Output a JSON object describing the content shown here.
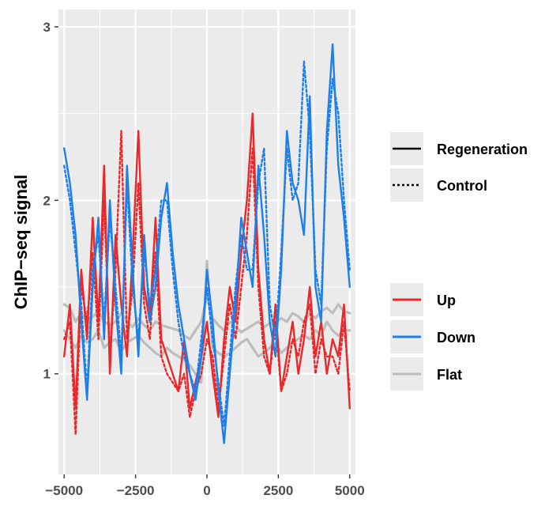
{
  "chart_data": {
    "type": "line",
    "title": "",
    "xlabel": "",
    "ylabel": "ChIP−seq signal",
    "xlim": [
      -5200,
      5200
    ],
    "ylim": [
      0.42,
      3.1
    ],
    "x_ticks": [
      -5000,
      -2500,
      0,
      2500,
      5000
    ],
    "x_tick_labels": [
      "−5000",
      "−2500",
      "0",
      "2500",
      "5000"
    ],
    "y_ticks": [
      1,
      2,
      3
    ],
    "y_tick_labels": [
      "1",
      "2",
      "3"
    ],
    "grid": true,
    "legend_position": "right",
    "linetype_legend": [
      {
        "label": "Regeneration",
        "dash": "solid"
      },
      {
        "label": "Control",
        "dash": "dotted"
      }
    ],
    "color_legend": [
      {
        "label": "Up",
        "color": "#e8282b"
      },
      {
        "label": "Down",
        "color": "#1e7fe8"
      },
      {
        "label": "Flat",
        "color": "#bdbdbd"
      }
    ],
    "series": [
      {
        "group": "Up",
        "condition": "Regeneration",
        "color": "#e8282b",
        "dash": "solid",
        "x": [
          -5000,
          -4800,
          -4600,
          -4400,
          -4200,
          -4000,
          -3800,
          -3600,
          -3400,
          -3200,
          -3000,
          -2800,
          -2600,
          -2400,
          -2200,
          -2000,
          -1800,
          -1600,
          -1400,
          -1200,
          -1000,
          -800,
          -600,
          -400,
          -200,
          0,
          200,
          400,
          600,
          800,
          1000,
          1200,
          1400,
          1600,
          1800,
          2000,
          2200,
          2400,
          2600,
          2800,
          3000,
          3200,
          3400,
          3600,
          3800,
          4000,
          4200,
          4400,
          4600,
          4800,
          5000
        ],
        "y": [
          1.1,
          1.4,
          0.8,
          1.6,
          1.2,
          1.9,
          1.3,
          2.2,
          1.0,
          1.8,
          1.4,
          1.1,
          1.7,
          2.4,
          1.5,
          1.3,
          1.9,
          1.2,
          1.1,
          1.0,
          0.9,
          1.2,
          0.8,
          0.95,
          1.1,
          1.3,
          1.0,
          0.75,
          1.2,
          1.5,
          1.3,
          1.7,
          2.0,
          2.5,
          1.6,
          1.2,
          1.0,
          1.4,
          0.9,
          1.1,
          1.3,
          1.0,
          1.2,
          1.5,
          1.1,
          1.3,
          1.0,
          1.2,
          1.1,
          1.4,
          0.8
        ]
      },
      {
        "group": "Up",
        "condition": "Control",
        "color": "#e8282b",
        "dash": "dotted",
        "x": [
          -5000,
          -4800,
          -4600,
          -4400,
          -4200,
          -4000,
          -3800,
          -3600,
          -3400,
          -3200,
          -3000,
          -2800,
          -2600,
          -2400,
          -2200,
          -2000,
          -1800,
          -1600,
          -1400,
          -1200,
          -1000,
          -800,
          -600,
          -400,
          -200,
          0,
          200,
          400,
          600,
          800,
          1000,
          1200,
          1400,
          1600,
          1800,
          2000,
          2200,
          2400,
          2600,
          2800,
          3000,
          3200,
          3400,
          3600,
          3800,
          4000,
          4200,
          4400,
          4600,
          4800,
          5000
        ],
        "y": [
          1.2,
          1.3,
          0.65,
          1.5,
          1.3,
          1.7,
          1.2,
          2.0,
          1.1,
          1.6,
          2.4,
          1.2,
          1.5,
          2.1,
          1.4,
          1.2,
          1.7,
          1.1,
          1.0,
          0.95,
          0.9,
          1.0,
          0.75,
          0.9,
          1.0,
          1.2,
          1.1,
          0.8,
          1.1,
          1.4,
          1.2,
          1.5,
          1.8,
          2.3,
          1.5,
          1.1,
          1.0,
          1.3,
          0.9,
          1.0,
          1.2,
          1.1,
          1.3,
          1.4,
          1.0,
          1.2,
          1.1,
          1.1,
          1.0,
          1.3,
          0.9
        ]
      },
      {
        "group": "Down",
        "condition": "Regeneration",
        "color": "#1e7fe8",
        "dash": "solid",
        "x": [
          -5000,
          -4800,
          -4600,
          -4400,
          -4200,
          -4000,
          -3800,
          -3600,
          -3400,
          -3200,
          -3000,
          -2800,
          -2600,
          -2400,
          -2200,
          -2000,
          -1800,
          -1600,
          -1400,
          -1200,
          -1000,
          -800,
          -600,
          -400,
          -200,
          0,
          200,
          400,
          600,
          800,
          1000,
          1200,
          1400,
          1600,
          1800,
          2000,
          2200,
          2400,
          2600,
          2800,
          3000,
          3200,
          3400,
          3600,
          3800,
          4000,
          4200,
          4400,
          4600,
          4800,
          5000
        ],
        "y": [
          2.3,
          2.1,
          1.8,
          1.3,
          0.85,
          1.5,
          1.9,
          1.2,
          2.0,
          1.4,
          1.0,
          2.2,
          1.6,
          1.1,
          1.8,
          1.3,
          1.5,
          1.9,
          2.1,
          1.7,
          1.4,
          1.2,
          1.0,
          0.85,
          1.1,
          1.6,
          1.3,
          0.9,
          0.6,
          1.0,
          1.4,
          1.9,
          1.7,
          1.5,
          2.2,
          1.8,
          1.3,
          1.1,
          1.6,
          2.4,
          2.1,
          2.0,
          1.8,
          2.6,
          1.5,
          1.3,
          2.4,
          2.9,
          2.2,
          1.9,
          1.5
        ]
      },
      {
        "group": "Down",
        "condition": "Control",
        "color": "#1e7fe8",
        "dash": "dotted",
        "x": [
          -5000,
          -4800,
          -4600,
          -4400,
          -4200,
          -4000,
          -3800,
          -3600,
          -3400,
          -3200,
          -3000,
          -2800,
          -2600,
          -2400,
          -2200,
          -2000,
          -1800,
          -1600,
          -1400,
          -1200,
          -1000,
          -800,
          -600,
          -400,
          -200,
          0,
          200,
          400,
          600,
          800,
          1000,
          1200,
          1400,
          1600,
          1800,
          2000,
          2200,
          2400,
          2600,
          2800,
          3000,
          3200,
          3400,
          3600,
          3800,
          4000,
          4200,
          4400,
          4600,
          4800,
          5000
        ],
        "y": [
          2.2,
          2.0,
          1.7,
          1.4,
          0.9,
          1.6,
          1.8,
          1.3,
          1.9,
          1.5,
          1.1,
          2.1,
          1.5,
          1.2,
          1.7,
          1.4,
          1.6,
          2.0,
          2.0,
          1.6,
          1.3,
          1.1,
          1.0,
          0.9,
          1.2,
          1.5,
          1.2,
          0.95,
          0.7,
          1.1,
          1.5,
          1.8,
          1.6,
          1.6,
          2.1,
          2.3,
          1.4,
          1.2,
          1.7,
          2.3,
          2.0,
          2.1,
          2.8,
          2.4,
          1.6,
          1.4,
          2.3,
          2.7,
          2.5,
          2.0,
          1.6
        ]
      },
      {
        "group": "Flat",
        "condition": "Regeneration",
        "color": "#bdbdbd",
        "dash": "solid",
        "x": [
          -5000,
          -4800,
          -4600,
          -4400,
          -4200,
          -4000,
          -3800,
          -3600,
          -3400,
          -3200,
          -3000,
          -2800,
          -2600,
          -2400,
          -2200,
          -2000,
          -1800,
          -1600,
          -1400,
          -1200,
          -1000,
          -800,
          -600,
          -400,
          -200,
          0,
          200,
          400,
          600,
          800,
          1000,
          1200,
          1400,
          1600,
          1800,
          2000,
          2200,
          2400,
          2600,
          2800,
          3000,
          3200,
          3400,
          3600,
          3800,
          4000,
          4200,
          4400,
          4600,
          4800,
          5000
        ],
        "y": [
          1.4,
          1.38,
          1.3,
          1.35,
          1.3,
          1.33,
          1.36,
          1.3,
          1.28,
          1.3,
          1.35,
          1.3,
          1.27,
          1.32,
          1.28,
          1.25,
          1.3,
          1.28,
          1.27,
          1.26,
          1.25,
          1.22,
          1.2,
          1.25,
          1.3,
          1.45,
          1.32,
          1.28,
          1.25,
          1.3,
          1.27,
          1.24,
          1.26,
          1.28,
          1.3,
          1.27,
          1.29,
          1.3,
          1.32,
          1.3,
          1.35,
          1.33,
          1.3,
          1.35,
          1.32,
          1.36,
          1.38,
          1.35,
          1.4,
          1.36,
          1.35
        ]
      },
      {
        "group": "Flat",
        "condition": "Control",
        "color": "#bdbdbd",
        "dash": "solid",
        "x": [
          -5000,
          -4800,
          -4600,
          -4400,
          -4200,
          -4000,
          -3800,
          -3600,
          -3400,
          -3200,
          -3000,
          -2800,
          -2600,
          -2400,
          -2200,
          -2000,
          -1800,
          -1600,
          -1400,
          -1200,
          -1000,
          -800,
          -600,
          -400,
          -200,
          0,
          200,
          400,
          600,
          800,
          1000,
          1200,
          1400,
          1600,
          1800,
          2000,
          2200,
          2400,
          2600,
          2800,
          3000,
          3200,
          3400,
          3600,
          3800,
          4000,
          4200,
          4400,
          4600,
          4800,
          5000
        ],
        "y": [
          1.25,
          1.2,
          1.15,
          1.22,
          1.18,
          1.2,
          1.25,
          1.15,
          1.18,
          1.2,
          1.13,
          1.18,
          1.2,
          1.22,
          1.18,
          1.15,
          1.12,
          1.1,
          1.15,
          1.12,
          1.1,
          1.08,
          1.05,
          1.0,
          0.95,
          1.65,
          1.15,
          1.12,
          1.1,
          1.12,
          1.15,
          1.18,
          1.2,
          1.15,
          1.1,
          1.12,
          1.15,
          1.18,
          1.12,
          1.15,
          1.18,
          1.2,
          1.22,
          1.2,
          1.25,
          1.22,
          1.3,
          1.25,
          1.22,
          1.25,
          1.25
        ]
      }
    ]
  }
}
